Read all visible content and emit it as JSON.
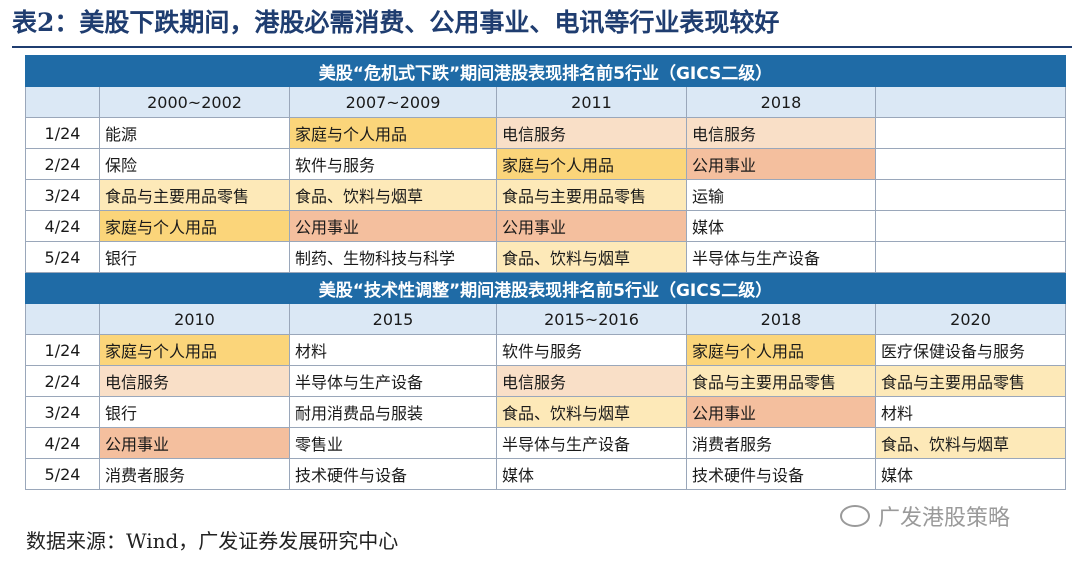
{
  "title": "表2：美股下跌期间，港股必需消费、公用事业、电讯等行业表现较好",
  "colors": {
    "yellow": "#fbd57a",
    "peach": "#f9dfc7",
    "salmon": "#f4bf9e",
    "lightyellow": "#fde9b8",
    "white": "#ffffff",
    "header_blue": "#1f6ba6",
    "year_blue": "#dbe8f5"
  },
  "sections": [
    {
      "header": "美股“危机式下跌”期间港股表现排名前5行业（GICS二级）",
      "years": [
        "2000~2002",
        "2007~2009",
        "2011",
        "2018",
        ""
      ],
      "rows": [
        {
          "rank": "1/24",
          "cells": [
            {
              "text": "能源",
              "color": "white"
            },
            {
              "text": "家庭与个人用品",
              "color": "yellow"
            },
            {
              "text": "电信服务",
              "color": "peach"
            },
            {
              "text": "电信服务",
              "color": "peach"
            },
            {
              "text": "",
              "color": "white"
            }
          ]
        },
        {
          "rank": "2/24",
          "cells": [
            {
              "text": "保险",
              "color": "white"
            },
            {
              "text": "软件与服务",
              "color": "white"
            },
            {
              "text": "家庭与个人用品",
              "color": "yellow"
            },
            {
              "text": "公用事业",
              "color": "salmon"
            },
            {
              "text": "",
              "color": "white"
            }
          ]
        },
        {
          "rank": "3/24",
          "cells": [
            {
              "text": "食品与主要用品零售",
              "color": "lightyellow"
            },
            {
              "text": "食品、饮料与烟草",
              "color": "lightyellow"
            },
            {
              "text": "食品与主要用品零售",
              "color": "lightyellow"
            },
            {
              "text": "运输",
              "color": "white"
            },
            {
              "text": "",
              "color": "white"
            }
          ]
        },
        {
          "rank": "4/24",
          "cells": [
            {
              "text": "家庭与个人用品",
              "color": "yellow"
            },
            {
              "text": "公用事业",
              "color": "salmon"
            },
            {
              "text": "公用事业",
              "color": "salmon"
            },
            {
              "text": "媒体",
              "color": "white"
            },
            {
              "text": "",
              "color": "white"
            }
          ]
        },
        {
          "rank": "5/24",
          "cells": [
            {
              "text": "银行",
              "color": "white"
            },
            {
              "text": "制药、生物科技与科学",
              "color": "white"
            },
            {
              "text": "食品、饮料与烟草",
              "color": "lightyellow"
            },
            {
              "text": "半导体与生产设备",
              "color": "white"
            },
            {
              "text": "",
              "color": "white"
            }
          ]
        }
      ]
    },
    {
      "header": "美股“技术性调整”期间港股表现排名前5行业（GICS二级）",
      "years": [
        "2010",
        "2015",
        "2015~2016",
        "2018",
        "2020"
      ],
      "rows": [
        {
          "rank": "1/24",
          "cells": [
            {
              "text": "家庭与个人用品",
              "color": "yellow"
            },
            {
              "text": "材料",
              "color": "white"
            },
            {
              "text": "软件与服务",
              "color": "white"
            },
            {
              "text": "家庭与个人用品",
              "color": "yellow"
            },
            {
              "text": "医疗保健设备与服务",
              "color": "white"
            }
          ]
        },
        {
          "rank": "2/24",
          "cells": [
            {
              "text": "电信服务",
              "color": "peach"
            },
            {
              "text": "半导体与生产设备",
              "color": "white"
            },
            {
              "text": "电信服务",
              "color": "peach"
            },
            {
              "text": "食品与主要用品零售",
              "color": "lightyellow"
            },
            {
              "text": "食品与主要用品零售",
              "color": "lightyellow"
            }
          ]
        },
        {
          "rank": "3/24",
          "cells": [
            {
              "text": "银行",
              "color": "white"
            },
            {
              "text": "耐用消费品与服装",
              "color": "white"
            },
            {
              "text": "食品、饮料与烟草",
              "color": "lightyellow"
            },
            {
              "text": "公用事业",
              "color": "salmon"
            },
            {
              "text": "材料",
              "color": "white"
            }
          ]
        },
        {
          "rank": "4/24",
          "cells": [
            {
              "text": "公用事业",
              "color": "salmon"
            },
            {
              "text": "零售业",
              "color": "white"
            },
            {
              "text": "半导体与生产设备",
              "color": "white"
            },
            {
              "text": "消费者服务",
              "color": "white"
            },
            {
              "text": "食品、饮料与烟草",
              "color": "lightyellow"
            }
          ]
        },
        {
          "rank": "5/24",
          "cells": [
            {
              "text": "消费者服务",
              "color": "white"
            },
            {
              "text": "技术硬件与设备",
              "color": "white"
            },
            {
              "text": "媒体",
              "color": "white"
            },
            {
              "text": "技术硬件与设备",
              "color": "white"
            },
            {
              "text": "媒体",
              "color": "white"
            }
          ]
        }
      ]
    }
  ],
  "source": "数据来源：Wind，广发证券发展研究中心",
  "watermark": "广发港股策略"
}
